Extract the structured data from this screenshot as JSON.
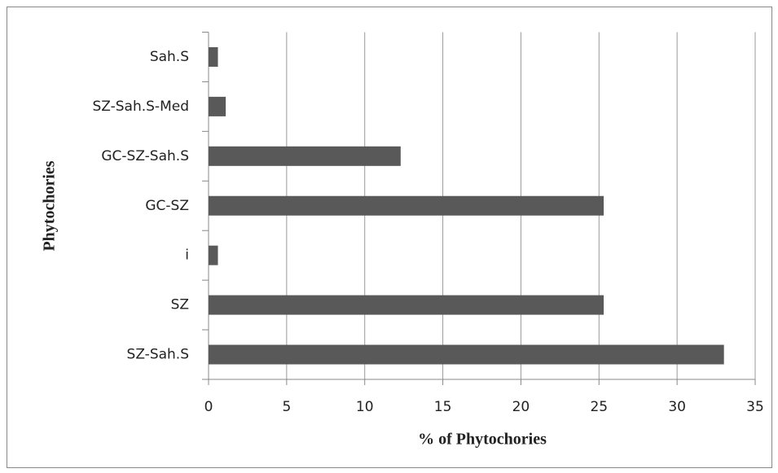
{
  "chart_data": {
    "type": "bar",
    "orientation": "horizontal",
    "categories": [
      "Sah.S",
      "SZ-Sah.S-Med",
      "GC-SZ-Sah.S",
      "GC-SZ",
      "i",
      "SZ",
      "SZ-Sah.S"
    ],
    "values": [
      0.6,
      1.1,
      12.3,
      25.3,
      0.6,
      25.3,
      33.0
    ],
    "color": "#595959",
    "xlabel": "% of Phytochories",
    "ylabel": "Phytochories",
    "xlim": [
      0,
      35
    ],
    "xticks": [
      0,
      5,
      10,
      15,
      20,
      25,
      30,
      35
    ],
    "grid": true
  }
}
